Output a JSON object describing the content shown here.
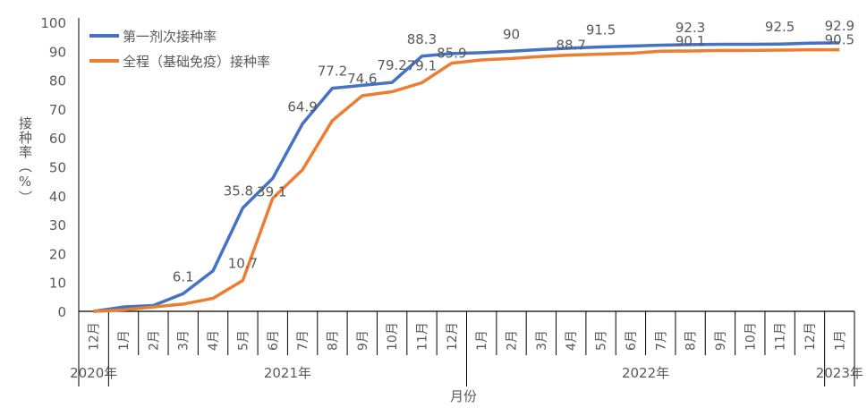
{
  "chart_data": {
    "type": "line",
    "title": "",
    "xlabel": "月份",
    "ylabel": "接种率（%）",
    "ylim": [
      0,
      100
    ],
    "yticks": [
      0,
      10,
      20,
      30,
      40,
      50,
      60,
      70,
      80,
      90,
      100
    ],
    "grid": false,
    "legend_position": "top-left",
    "categories": [
      "12月",
      "1月",
      "2月",
      "3月",
      "4月",
      "5月",
      "6月",
      "7月",
      "8月",
      "9月",
      "10月",
      "11月",
      "12月",
      "1月",
      "2月",
      "3月",
      "4月",
      "5月",
      "6月",
      "7月",
      "8月",
      "9月",
      "10月",
      "11月",
      "12月",
      "1月"
    ],
    "year_groups": [
      {
        "label": "2020年",
        "count": 1
      },
      {
        "label": "2021年",
        "count": 12
      },
      {
        "label": "2022年",
        "count": 12
      },
      {
        "label": "2023年",
        "count": 1
      }
    ],
    "series": [
      {
        "name": "第一剂次接种率",
        "color": "#4472C4",
        "values": [
          0,
          1.5,
          2,
          6.1,
          14,
          35.8,
          46,
          64.9,
          77.2,
          78.2,
          79.2,
          88.3,
          89.2,
          89.5,
          90,
          90.6,
          91.1,
          91.5,
          91.8,
          92.1,
          92.3,
          92.4,
          92.4,
          92.5,
          92.8,
          92.9
        ],
        "labels": {
          "3": "6.1",
          "5": "35.8",
          "7": "64.9",
          "8": "77.2",
          "10": "79.2",
          "11": "88.3",
          "14": "90",
          "17": "91.5",
          "20": "92.3",
          "23": "92.5",
          "25": "92.9"
        }
      },
      {
        "name": "全程（基础免疫）接种率",
        "color": "#ED7D31",
        "values": [
          0,
          0.5,
          1.5,
          2.5,
          4.5,
          10.7,
          39.1,
          49,
          66,
          74.6,
          76,
          79.1,
          85.9,
          87,
          87.5,
          88.2,
          88.7,
          89,
          89.3,
          90,
          90.1,
          90.3,
          90.3,
          90.4,
          90.5,
          90.5
        ],
        "labels": {
          "5": "10.7",
          "6": "39.1",
          "9": "74.6",
          "11": "79.1",
          "12": "85.9",
          "16": "88.7",
          "20": "90.1",
          "25": "90.5"
        }
      }
    ]
  }
}
